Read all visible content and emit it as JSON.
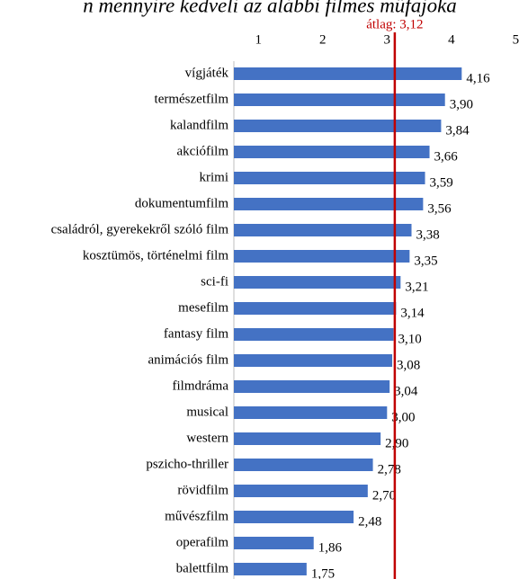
{
  "chart_data": {
    "type": "bar",
    "orientation": "horizontal",
    "title": "n mennyire kedveli az alábbi filmes műfajoka",
    "categories": [
      "vígjáték",
      "természetfilm",
      "kalandfilm",
      "akciófilm",
      "krimi",
      "dokumentumfilm",
      "családról, gyerekekről szóló film",
      "kosztümös, történelmi film",
      "sci-fi",
      "mesefilm",
      "fantasy film",
      "animációs film",
      "filmdráma",
      "musical",
      "western",
      "pszicho-thriller",
      "rövidfilm",
      "művészfilm",
      "operafilm",
      "balettfilm"
    ],
    "values": [
      4.16,
      3.9,
      3.84,
      3.66,
      3.59,
      3.56,
      3.38,
      3.35,
      3.21,
      3.14,
      3.1,
      3.08,
      3.04,
      3.0,
      2.9,
      2.78,
      2.7,
      2.48,
      1.86,
      1.75
    ],
    "value_labels": [
      "4,16",
      "3,90",
      "3,84",
      "3,66",
      "3,59",
      "3,56",
      "3,38",
      "3,35",
      "3,21",
      "3,14",
      "3,10",
      "3,08",
      "3,04",
      "3,00",
      "2,90",
      "2,78",
      "2,70",
      "2,48",
      "1,86",
      "1,75"
    ],
    "color": "#4472c4",
    "xlim": [
      0.62,
      5.05
    ],
    "xticks": [
      1,
      2,
      3,
      4,
      5
    ],
    "average": 3.12,
    "average_label": "átlag: 3,12",
    "average_color": "#c00000"
  }
}
